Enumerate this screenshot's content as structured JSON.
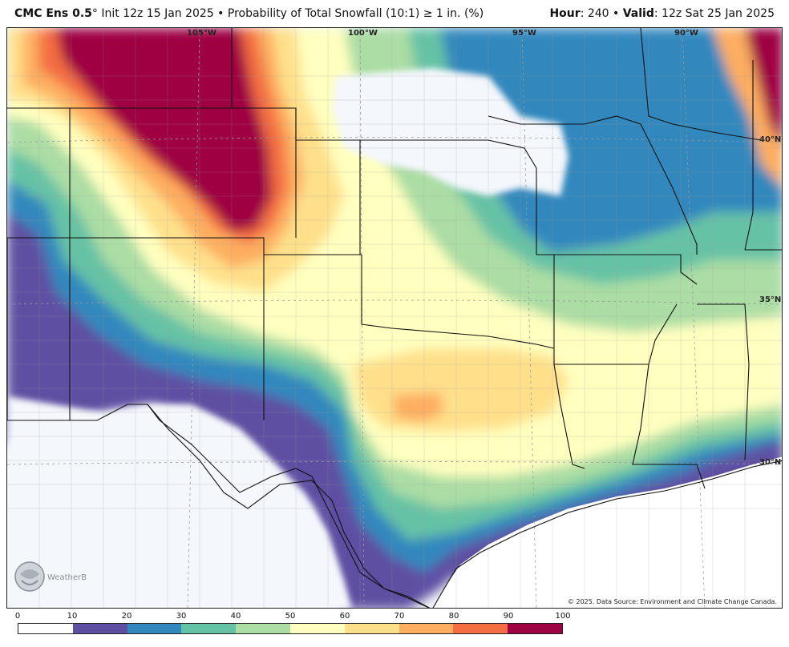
{
  "header": {
    "model": "CMC Ens 0.5",
    "degree": "°",
    "init": " Init 12z 15 Jan 2025 • Probability of Total Snowfall (10:1) ≥ 1 in. (%)",
    "hour_label": "Hour",
    "hour_value": ": 240 • ",
    "valid_label": "Valid",
    "valid_value": ": 12z Sat 25 Jan 2025"
  },
  "map": {
    "longitude_labels": [
      "105°W",
      "100°W",
      "95°W",
      "90°W"
    ],
    "latitude_labels": [
      "40°N",
      "35°N",
      "30°N"
    ],
    "copyright": "© 2025. Data Source: Environment and Climate Change Canada.",
    "logo_text": "WeatherBELL",
    "region": "Southern Plains, Southwest and Gulf Coast, United States",
    "colors": {
      "water": "#ffffff",
      "land_no_data": "#f4f7fc",
      "state_border": "#111111",
      "county_border": "#9a9a9a"
    }
  },
  "legend": {
    "ticks": [
      "0",
      "10",
      "20",
      "30",
      "40",
      "50",
      "60",
      "70",
      "80",
      "90",
      "100"
    ],
    "colors": [
      "#ffffff",
      "#5e4fa2",
      "#3288bd",
      "#66c2a5",
      "#abdda4",
      "#ffffbf",
      "#fee08b",
      "#fdae61",
      "#f46d43",
      "#9e0142"
    ]
  }
}
